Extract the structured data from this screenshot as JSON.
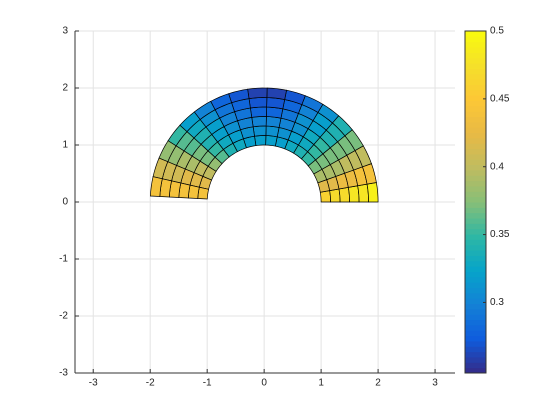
{
  "chart_data": {
    "type": "polar-mesh",
    "r_range": [
      1,
      2
    ],
    "theta_range": [
      0,
      177
    ],
    "values": [
      [
        0.46,
        0.42,
        0.39,
        0.37,
        0.35,
        0.34,
        0.33,
        0.32,
        0.32,
        0.32,
        0.32,
        0.33,
        0.34,
        0.36,
        0.38,
        0.4,
        0.42,
        0.44
      ],
      [
        0.47,
        0.42,
        0.39,
        0.37,
        0.35,
        0.33,
        0.32,
        0.31,
        0.31,
        0.31,
        0.31,
        0.32,
        0.33,
        0.35,
        0.37,
        0.4,
        0.42,
        0.44
      ],
      [
        0.47,
        0.43,
        0.39,
        0.37,
        0.35,
        0.33,
        0.31,
        0.3,
        0.3,
        0.3,
        0.3,
        0.31,
        0.32,
        0.34,
        0.37,
        0.39,
        0.42,
        0.44
      ],
      [
        0.48,
        0.43,
        0.4,
        0.37,
        0.34,
        0.32,
        0.31,
        0.29,
        0.28,
        0.28,
        0.29,
        0.3,
        0.32,
        0.34,
        0.36,
        0.39,
        0.41,
        0.44
      ],
      [
        0.48,
        0.44,
        0.4,
        0.37,
        0.34,
        0.32,
        0.3,
        0.28,
        0.27,
        0.27,
        0.28,
        0.29,
        0.31,
        0.33,
        0.36,
        0.38,
        0.41,
        0.44
      ],
      [
        0.49,
        0.44,
        0.4,
        0.37,
        0.34,
        0.31,
        0.29,
        0.27,
        0.26,
        0.26,
        0.27,
        0.28,
        0.3,
        0.32,
        0.35,
        0.38,
        0.41,
        0.44
      ]
    ],
    "xlim": [
      -3.32,
      3.35
    ],
    "ylim": [
      -3,
      3
    ],
    "xticks": [
      -3,
      -2,
      -1,
      0,
      1,
      2,
      3
    ],
    "yticks": [
      -3,
      -2,
      -1,
      0,
      1,
      2,
      3
    ],
    "clim": [
      0.248,
      0.5
    ],
    "cticks": [
      0.3,
      0.35,
      0.4,
      0.45,
      0.5
    ],
    "colormap": "parula",
    "grid": true
  }
}
